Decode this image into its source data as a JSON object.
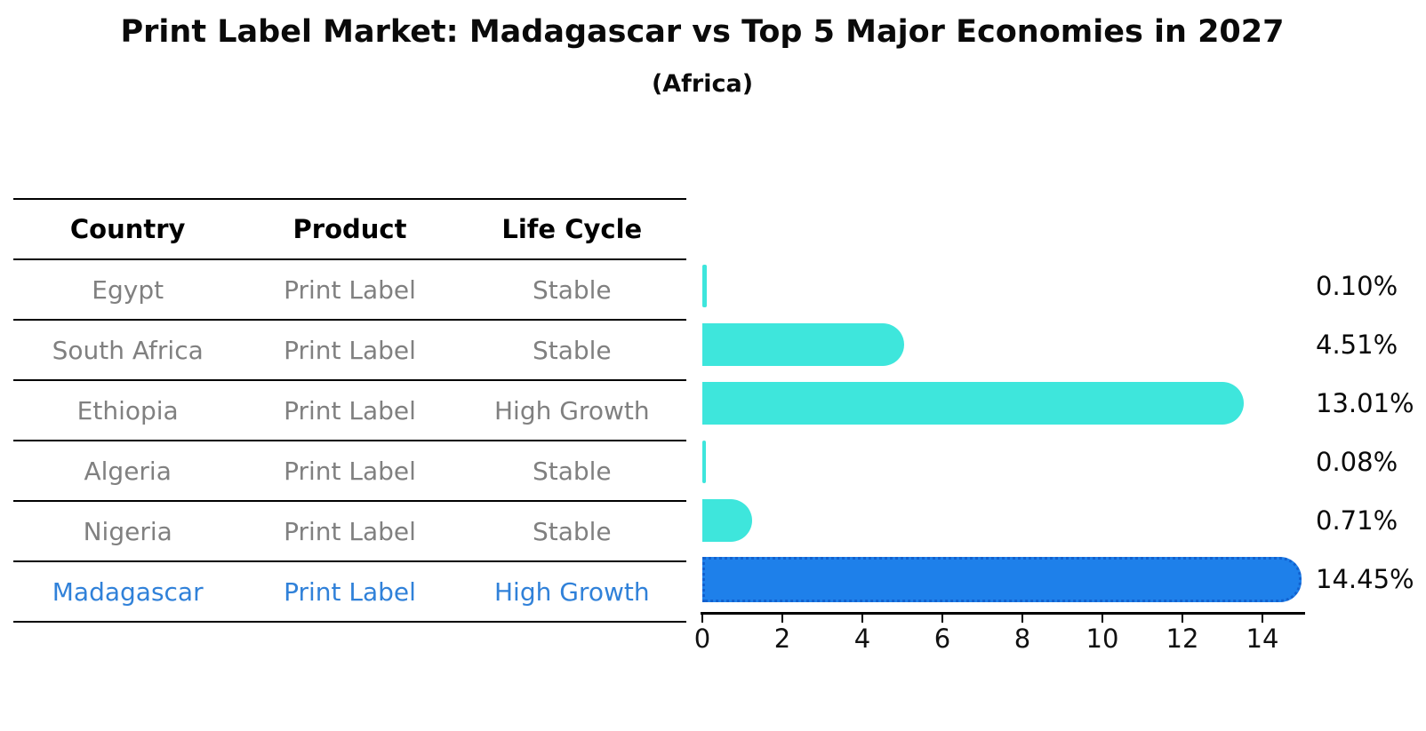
{
  "title": "Print Label Market: Madagascar vs Top 5 Major Economies in 2027",
  "subtitle": "(Africa)",
  "table": {
    "headers": [
      "Country",
      "Product",
      "Life Cycle"
    ],
    "rows": [
      {
        "country": "Egypt",
        "product": "Print Label",
        "life_cycle": "Stable"
      },
      {
        "country": "South Africa",
        "product": "Print Label",
        "life_cycle": "Stable"
      },
      {
        "country": "Ethiopia",
        "product": "Print Label",
        "life_cycle": "High Growth"
      },
      {
        "country": "Algeria",
        "product": "Print Label",
        "life_cycle": "Stable"
      },
      {
        "country": "Nigeria",
        "product": "Print Label",
        "life_cycle": "Stable"
      },
      {
        "country": "Madagascar",
        "product": "Print Label",
        "life_cycle": "High Growth"
      }
    ]
  },
  "chart_data": {
    "type": "bar",
    "orientation": "horizontal",
    "title": "Print Label Market: Madagascar vs Top 5 Major Economies in 2027",
    "subtitle": "(Africa)",
    "categories": [
      "Egypt",
      "South Africa",
      "Ethiopia",
      "Algeria",
      "Nigeria",
      "Madagascar"
    ],
    "values": [
      0.1,
      4.51,
      13.01,
      0.08,
      0.71,
      14.45
    ],
    "value_labels": [
      "0.10%",
      "4.51%",
      "13.01%",
      "0.08%",
      "0.71%",
      "14.45%"
    ],
    "highlight_category": "Madagascar",
    "xlim": [
      0,
      15.2
    ],
    "x_ticks": [
      "0",
      "2",
      "4",
      "6",
      "8",
      "10",
      "12",
      "14"
    ],
    "grid": false,
    "legend": "none",
    "colors": {
      "default_bar": "#3ee6dc",
      "highlight_bar": "#1e80ea",
      "highlight_border": "#1261cf",
      "highlight_text": "#3081d9",
      "row_text": "#808080",
      "header_text": "#000000",
      "axis_text": "#111111"
    }
  }
}
